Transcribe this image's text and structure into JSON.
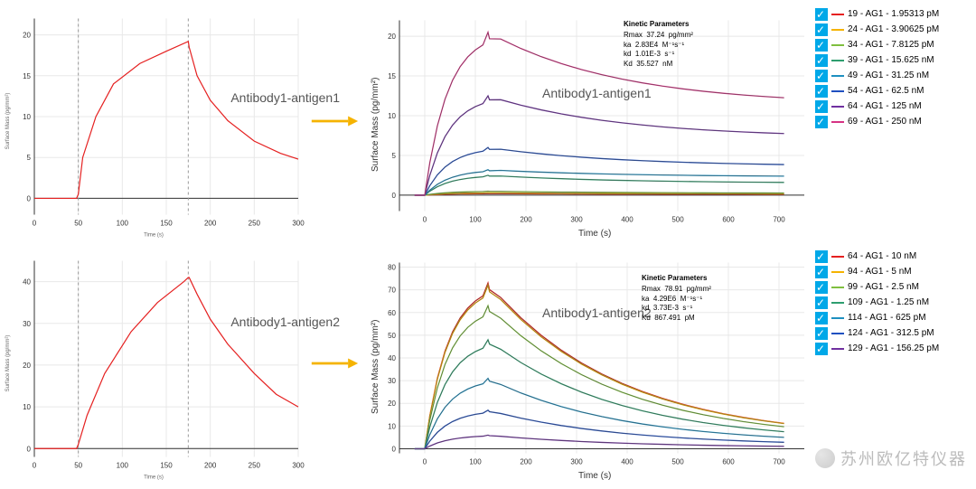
{
  "labels": {
    "tl": "Antibody1-antigen1",
    "tr": "Antibody1-antigen1",
    "bl": "Antibody1-antigen2",
    "br": "Antibody1-antigen2",
    "ylabel_big": "Surface Mass (pg/mm²)",
    "xlabel_big": "Time (s)",
    "ylabel_small": "Surface Mass (pg/mm²)",
    "xlabel_small": "Time (s)",
    "watermark": "苏州欧亿特仪器"
  },
  "arrow_color": "#f5b301",
  "small_top": {
    "xlim": [
      0,
      300
    ],
    "ylim": [
      -2,
      22
    ],
    "xticks": [
      0,
      50,
      100,
      150,
      200,
      250,
      300
    ],
    "yticks": [
      0,
      5,
      10,
      15,
      20
    ],
    "grid_color": "#e8e8e8",
    "bg": "#ffffff",
    "series_color": "#e52020",
    "vlines": [
      50,
      175
    ],
    "vline_color": "#999999",
    "points": [
      [
        0,
        0
      ],
      [
        48,
        0
      ],
      [
        50,
        0.5
      ],
      [
        55,
        5
      ],
      [
        70,
        10
      ],
      [
        90,
        14
      ],
      [
        120,
        16.5
      ],
      [
        150,
        18
      ],
      [
        175,
        19.2
      ],
      [
        176,
        18.5
      ],
      [
        185,
        15
      ],
      [
        200,
        12
      ],
      [
        220,
        9.5
      ],
      [
        250,
        7
      ],
      [
        280,
        5.5
      ],
      [
        300,
        4.8
      ]
    ]
  },
  "small_bot": {
    "xlim": [
      0,
      300
    ],
    "ylim": [
      -2,
      45
    ],
    "xticks": [
      0,
      50,
      100,
      150,
      200,
      250,
      300
    ],
    "yticks": [
      0,
      10,
      20,
      30,
      40
    ],
    "grid_color": "#e8e8e8",
    "bg": "#ffffff",
    "series_color": "#e52020",
    "vlines": [
      50,
      175
    ],
    "vline_color": "#999999",
    "points": [
      [
        0,
        0
      ],
      [
        48,
        0
      ],
      [
        50,
        1
      ],
      [
        60,
        8
      ],
      [
        80,
        18
      ],
      [
        110,
        28
      ],
      [
        140,
        35
      ],
      [
        170,
        40
      ],
      [
        175,
        41
      ],
      [
        176,
        41
      ],
      [
        185,
        37
      ],
      [
        200,
        31
      ],
      [
        220,
        25
      ],
      [
        250,
        18
      ],
      [
        275,
        13
      ],
      [
        300,
        10
      ]
    ]
  },
  "big_top": {
    "xlim": [
      -50,
      750
    ],
    "ylim": [
      -2,
      22
    ],
    "xticks": [
      0,
      100,
      200,
      300,
      400,
      500,
      600,
      700
    ],
    "yticks": [
      0,
      5,
      10,
      15,
      20
    ],
    "grid_color": "#e8e8e8",
    "bg": "#ffffff",
    "fit_color": "#444444",
    "series": [
      {
        "name": "19 - AG1 - 1.95313 pM",
        "color": "#e52020",
        "pk": 0.2,
        "end": 0.1
      },
      {
        "name": "24 - AG1 - 3.90625 pM",
        "color": "#f5b301",
        "pk": 0.3,
        "end": 0.15
      },
      {
        "name": "34 - AG1 - 7.8125 pM",
        "color": "#7fbf3f",
        "pk": 0.5,
        "end": 0.25
      },
      {
        "name": "39 - AG1 - 15.625 nM",
        "color": "#2e9e6f",
        "pk": 2.5,
        "end": 1.5
      },
      {
        "name": "49 - AG1 - 31.25 nM",
        "color": "#1e90c0",
        "pk": 3.2,
        "end": 2.3
      },
      {
        "name": "54 - AG1 - 62.5 nM",
        "color": "#2050c0",
        "pk": 6.0,
        "end": 3.6
      },
      {
        "name": "64 - AG1 - 125 nM",
        "color": "#7030a0",
        "pk": 12.5,
        "end": 7.2
      },
      {
        "name": "69 - AG1 - 250 nM",
        "color": "#d63384",
        "pk": 20.5,
        "end": 11.3
      }
    ],
    "kinetic": {
      "title": "Kinetic Parameters",
      "rows": [
        [
          "Rmax",
          "37.24",
          "pg/mm²"
        ],
        [
          "ka",
          "2.83E4",
          "M⁻¹s⁻¹"
        ],
        [
          "kd",
          "1.01E-3",
          "s⁻¹"
        ],
        [
          "Kd",
          "35.527",
          "nM"
        ]
      ]
    }
  },
  "big_bot": {
    "xlim": [
      -50,
      750
    ],
    "ylim": [
      -2,
      82
    ],
    "xticks": [
      0,
      100,
      200,
      300,
      400,
      500,
      600,
      700
    ],
    "yticks": [
      0,
      10,
      20,
      30,
      40,
      50,
      60,
      70,
      80
    ],
    "grid_color": "#e8e8e8",
    "bg": "#ffffff",
    "fit_color": "#444444",
    "series": [
      {
        "name": "64 - AG1 - 10 nM",
        "color": "#e52020",
        "pk": 73,
        "end": 4
      },
      {
        "name": "94 - AG1 - 5 nM",
        "color": "#f5b301",
        "pk": 72,
        "end": 4
      },
      {
        "name": "99 - AG1 - 2.5 nM",
        "color": "#7fbf3f",
        "pk": 63,
        "end": 3.5
      },
      {
        "name": "109 - AG1 - 1.25 nM",
        "color": "#2e9e6f",
        "pk": 48,
        "end": 2.8
      },
      {
        "name": "114 - AG1 - 625 pM",
        "color": "#1e90c0",
        "pk": 31,
        "end": 2
      },
      {
        "name": "124 - AG1 - 312.5 pM",
        "color": "#2050c0",
        "pk": 17,
        "end": 1.2
      },
      {
        "name": "129 - AG1 - 156.25 pM",
        "color": "#7030a0",
        "pk": 6,
        "end": 0.5
      }
    ],
    "kinetic": {
      "title": "Kinetic Parameters",
      "rows": [
        [
          "Rmax",
          "78.91",
          "pg/mm²"
        ],
        [
          "ka",
          "4.29E6",
          "M⁻¹s⁻¹"
        ],
        [
          "kd",
          "3.73E-3",
          "s⁻¹"
        ],
        [
          "Kd",
          "867.491",
          "pM"
        ]
      ]
    }
  }
}
